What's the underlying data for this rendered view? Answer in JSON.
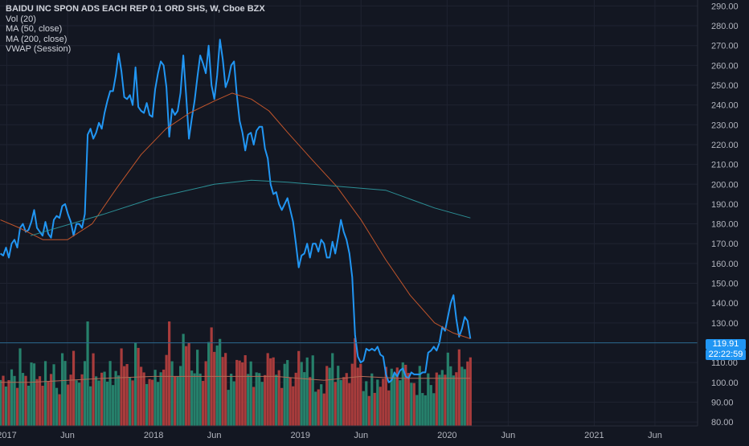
{
  "legend": {
    "title": "BAIDU INC SPON ADS EACH REP 0.1 ORD SHS, W, Cboe BZX",
    "indicators": [
      "Vol (20)",
      "MA (50, close)",
      "MA (200, close)",
      "VWAP (Session)"
    ]
  },
  "colors": {
    "background": "#131722",
    "grid": "#1f2331",
    "price_line": "#2196f3",
    "ma50": "#c1552b",
    "ma200": "#2c8f95",
    "volume_up": "#26806b",
    "volume_down": "#a83c3c",
    "volume_ma": "#b46a56",
    "axis_text": "#b2b5be",
    "last_price_line": "#2b6a8f",
    "tag": "#2196f3"
  },
  "price_tag": {
    "value": "119.91",
    "time": "22:22:59"
  },
  "chart_data": {
    "type": "line",
    "title": "BAIDU INC SPON ADS EACH REP 0.1 ORD SHS, W, Cboe BZX",
    "xlabel": "",
    "ylabel": "",
    "ylim": [
      78,
      293
    ],
    "xlim": [
      "2016-12-15",
      "2021-09-15"
    ],
    "y_ticks": [
      "80.00",
      "90.00",
      "100.00",
      "110.00",
      "120.00",
      "130.00",
      "140.00",
      "150.00",
      "160.00",
      "170.00",
      "180.00",
      "190.00",
      "200.00",
      "210.00",
      "220.00",
      "230.00",
      "240.00",
      "250.00",
      "260.00",
      "270.00",
      "280.00",
      "290.00"
    ],
    "x_ticks": [
      {
        "label": "2017",
        "date": "2017-01-01"
      },
      {
        "label": "Jun",
        "date": "2017-06-01"
      },
      {
        "label": "2018",
        "date": "2018-01-01"
      },
      {
        "label": "Jun",
        "date": "2018-06-01"
      },
      {
        "label": "2019",
        "date": "2019-01-01"
      },
      {
        "label": "Jun",
        "date": "2019-06-01"
      },
      {
        "label": "2020",
        "date": "2020-01-01"
      },
      {
        "label": "Jun",
        "date": "2020-06-01"
      },
      {
        "label": "2021",
        "date": "2021-01-01"
      },
      {
        "label": "Jun",
        "date": "2021-06-01"
      }
    ],
    "grid": true,
    "legend_position": "top-left",
    "series": [
      {
        "name": "",
        "kind": "price",
        "points": [
          [
            "2016-12-16",
            165
          ],
          [
            "2016-12-23",
            164
          ],
          [
            "2016-12-30",
            168
          ],
          [
            "2017-01-06",
            163
          ],
          [
            "2017-01-13",
            170
          ],
          [
            "2017-01-20",
            172
          ],
          [
            "2017-01-27",
            168
          ],
          [
            "2017-02-03",
            178
          ],
          [
            "2017-02-10",
            180
          ],
          [
            "2017-02-17",
            176
          ],
          [
            "2017-02-24",
            177
          ],
          [
            "2017-03-03",
            181
          ],
          [
            "2017-03-10",
            187
          ],
          [
            "2017-03-17",
            178
          ],
          [
            "2017-03-24",
            176
          ],
          [
            "2017-03-31",
            174
          ],
          [
            "2017-04-07",
            181
          ],
          [
            "2017-04-14",
            175
          ],
          [
            "2017-04-21",
            173
          ],
          [
            "2017-04-28",
            182
          ],
          [
            "2017-05-05",
            184
          ],
          [
            "2017-05-12",
            183
          ],
          [
            "2017-05-19",
            189
          ],
          [
            "2017-05-26",
            190
          ],
          [
            "2017-06-02",
            185
          ],
          [
            "2017-06-09",
            181
          ],
          [
            "2017-06-16",
            174
          ],
          [
            "2017-06-23",
            180
          ],
          [
            "2017-06-30",
            180
          ],
          [
            "2017-07-07",
            178
          ],
          [
            "2017-07-14",
            185
          ],
          [
            "2017-07-21",
            225
          ],
          [
            "2017-07-28",
            228
          ],
          [
            "2017-08-04",
            223
          ],
          [
            "2017-08-11",
            226
          ],
          [
            "2017-08-18",
            231
          ],
          [
            "2017-08-25",
            228
          ],
          [
            "2017-09-01",
            236
          ],
          [
            "2017-09-08",
            242
          ],
          [
            "2017-09-15",
            247
          ],
          [
            "2017-09-22",
            247
          ],
          [
            "2017-09-29",
            255
          ],
          [
            "2017-10-06",
            266
          ],
          [
            "2017-10-13",
            257
          ],
          [
            "2017-10-20",
            244
          ],
          [
            "2017-10-27",
            243
          ],
          [
            "2017-11-03",
            245
          ],
          [
            "2017-11-10",
            240
          ],
          [
            "2017-11-17",
            259
          ],
          [
            "2017-11-24",
            239
          ],
          [
            "2017-12-01",
            237
          ],
          [
            "2017-12-08",
            236
          ],
          [
            "2017-12-15",
            241
          ],
          [
            "2017-12-22",
            235
          ],
          [
            "2017-12-29",
            234
          ],
          [
            "2018-01-05",
            248
          ],
          [
            "2018-01-12",
            256
          ],
          [
            "2018-01-19",
            262
          ],
          [
            "2018-01-26",
            260
          ],
          [
            "2018-02-02",
            249
          ],
          [
            "2018-02-09",
            224
          ],
          [
            "2018-02-16",
            238
          ],
          [
            "2018-02-23",
            235
          ],
          [
            "2018-03-02",
            237
          ],
          [
            "2018-03-09",
            246
          ],
          [
            "2018-03-16",
            265
          ],
          [
            "2018-03-23",
            245
          ],
          [
            "2018-03-30",
            223
          ],
          [
            "2018-04-06",
            233
          ],
          [
            "2018-04-13",
            242
          ],
          [
            "2018-04-20",
            254
          ],
          [
            "2018-04-27",
            265
          ],
          [
            "2018-05-04",
            261
          ],
          [
            "2018-05-11",
            256
          ],
          [
            "2018-05-18",
            270
          ],
          [
            "2018-05-25",
            250
          ],
          [
            "2018-06-01",
            243
          ],
          [
            "2018-06-08",
            255
          ],
          [
            "2018-06-15",
            273
          ],
          [
            "2018-06-22",
            263
          ],
          [
            "2018-06-29",
            249
          ],
          [
            "2018-07-06",
            253
          ],
          [
            "2018-07-13",
            260
          ],
          [
            "2018-07-20",
            262
          ],
          [
            "2018-07-27",
            245
          ],
          [
            "2018-08-03",
            232
          ],
          [
            "2018-08-10",
            226
          ],
          [
            "2018-08-17",
            217
          ],
          [
            "2018-08-24",
            225
          ],
          [
            "2018-08-31",
            226
          ],
          [
            "2018-09-07",
            220
          ],
          [
            "2018-09-14",
            227
          ],
          [
            "2018-09-21",
            229
          ],
          [
            "2018-09-28",
            229
          ],
          [
            "2018-10-05",
            218
          ],
          [
            "2018-10-12",
            213
          ],
          [
            "2018-10-19",
            200
          ],
          [
            "2018-10-26",
            195
          ],
          [
            "2018-11-02",
            196
          ],
          [
            "2018-11-09",
            190
          ],
          [
            "2018-11-16",
            187
          ],
          [
            "2018-11-23",
            190
          ],
          [
            "2018-11-30",
            193
          ],
          [
            "2018-12-07",
            187
          ],
          [
            "2018-12-14",
            181
          ],
          [
            "2018-12-21",
            170
          ],
          [
            "2018-12-28",
            158
          ],
          [
            "2019-01-04",
            164
          ],
          [
            "2019-01-11",
            165
          ],
          [
            "2019-01-18",
            170
          ],
          [
            "2019-01-25",
            163
          ],
          [
            "2019-02-01",
            170
          ],
          [
            "2019-02-08",
            170
          ],
          [
            "2019-02-15",
            166
          ],
          [
            "2019-02-22",
            172
          ],
          [
            "2019-03-01",
            170
          ],
          [
            "2019-03-08",
            163
          ],
          [
            "2019-03-15",
            163
          ],
          [
            "2019-03-22",
            171
          ],
          [
            "2019-03-29",
            165
          ],
          [
            "2019-04-05",
            173
          ],
          [
            "2019-04-12",
            182
          ],
          [
            "2019-04-19",
            176
          ],
          [
            "2019-04-26",
            172
          ],
          [
            "2019-05-03",
            165
          ],
          [
            "2019-05-10",
            153
          ],
          [
            "2019-05-17",
            124
          ],
          [
            "2019-05-24",
            113
          ],
          [
            "2019-05-31",
            110
          ],
          [
            "2019-06-07",
            111
          ],
          [
            "2019-06-14",
            117
          ],
          [
            "2019-06-21",
            116
          ],
          [
            "2019-06-28",
            117
          ],
          [
            "2019-07-05",
            116
          ],
          [
            "2019-07-12",
            118
          ],
          [
            "2019-07-19",
            114
          ],
          [
            "2019-07-26",
            113
          ],
          [
            "2019-08-02",
            104
          ],
          [
            "2019-08-09",
            100
          ],
          [
            "2019-08-16",
            101
          ],
          [
            "2019-08-23",
            105
          ],
          [
            "2019-08-30",
            103
          ],
          [
            "2019-09-06",
            106
          ],
          [
            "2019-09-13",
            107
          ],
          [
            "2019-09-20",
            103
          ],
          [
            "2019-09-27",
            102
          ],
          [
            "2019-10-04",
            105
          ],
          [
            "2019-10-11",
            104
          ],
          [
            "2019-10-18",
            104
          ],
          [
            "2019-10-25",
            104
          ],
          [
            "2019-11-01",
            105
          ],
          [
            "2019-11-08",
            105
          ],
          [
            "2019-11-15",
            115
          ],
          [
            "2019-11-22",
            116
          ],
          [
            "2019-11-29",
            118
          ],
          [
            "2019-12-06",
            116
          ],
          [
            "2019-12-13",
            120
          ],
          [
            "2019-12-20",
            128
          ],
          [
            "2019-12-27",
            126
          ],
          [
            "2020-01-03",
            133
          ],
          [
            "2020-01-10",
            140
          ],
          [
            "2020-01-17",
            144
          ],
          [
            "2020-01-24",
            132
          ],
          [
            "2020-01-31",
            123
          ],
          [
            "2020-02-07",
            127
          ],
          [
            "2020-02-14",
            133
          ],
          [
            "2020-02-21",
            131
          ],
          [
            "2020-02-28",
            122
          ]
        ]
      },
      {
        "name": "",
        "kind": "ma50",
        "points": [
          [
            "2016-12-16",
            182
          ],
          [
            "2017-02-01",
            178
          ],
          [
            "2017-04-01",
            172
          ],
          [
            "2017-06-01",
            172
          ],
          [
            "2017-08-01",
            180
          ],
          [
            "2017-10-01",
            198
          ],
          [
            "2017-12-01",
            215
          ],
          [
            "2018-02-01",
            228
          ],
          [
            "2018-04-01",
            236
          ],
          [
            "2018-06-01",
            242
          ],
          [
            "2018-07-15",
            246
          ],
          [
            "2018-09-01",
            243
          ],
          [
            "2018-10-15",
            237
          ],
          [
            "2018-12-01",
            226
          ],
          [
            "2019-02-01",
            212
          ],
          [
            "2019-04-01",
            199
          ],
          [
            "2019-06-01",
            182
          ],
          [
            "2019-08-01",
            162
          ],
          [
            "2019-10-01",
            144
          ],
          [
            "2019-12-01",
            130
          ],
          [
            "2020-01-15",
            125
          ],
          [
            "2020-02-28",
            122
          ]
        ]
      },
      {
        "name": "",
        "kind": "ma200",
        "points": [
          [
            "2017-03-01",
            174
          ],
          [
            "2017-09-01",
            185
          ],
          [
            "2018-01-01",
            193
          ],
          [
            "2018-06-01",
            200
          ],
          [
            "2018-09-01",
            202
          ],
          [
            "2018-12-01",
            201
          ],
          [
            "2019-04-01",
            199
          ],
          [
            "2019-08-01",
            197
          ],
          [
            "2019-12-01",
            188
          ],
          [
            "2020-02-28",
            183
          ]
        ]
      },
      {
        "name": "",
        "kind": "volume_ma",
        "points": [
          [
            "2016-12-16",
            100
          ],
          [
            "2017-03-01",
            100
          ],
          [
            "2017-06-01",
            101
          ],
          [
            "2017-09-01",
            102
          ],
          [
            "2018-01-01",
            103
          ],
          [
            "2018-06-01",
            103
          ],
          [
            "2018-11-01",
            103
          ],
          [
            "2019-03-01",
            101
          ],
          [
            "2019-06-01",
            103
          ],
          [
            "2019-09-01",
            102
          ],
          [
            "2020-01-01",
            102
          ],
          [
            "2020-02-28",
            102
          ]
        ]
      }
    ]
  }
}
